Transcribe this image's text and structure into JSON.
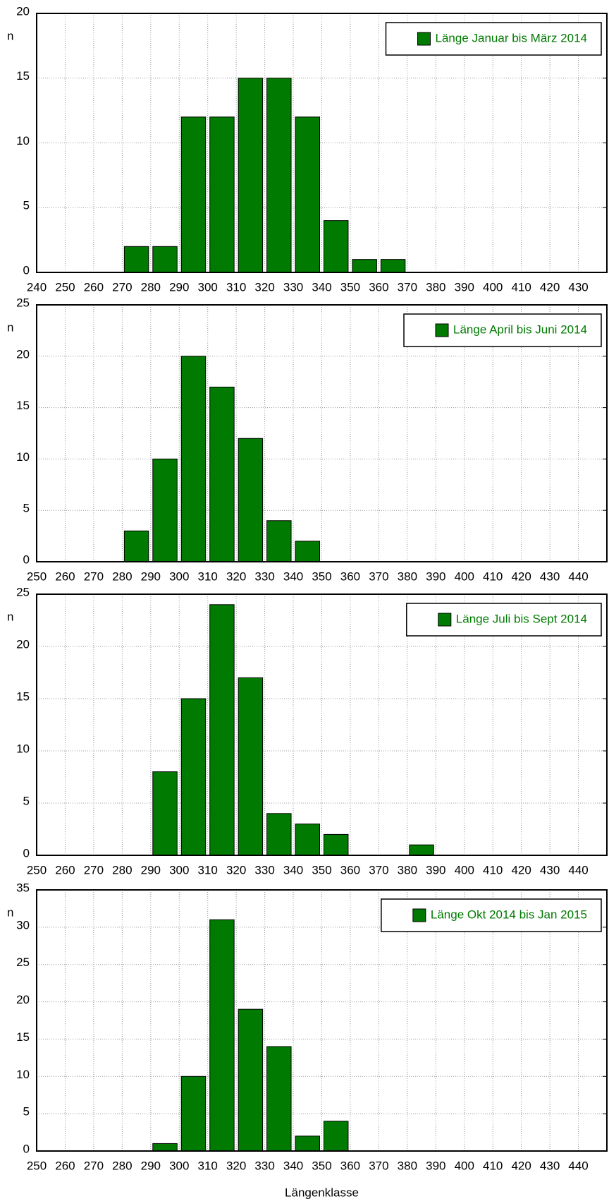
{
  "chart_data": [
    {
      "type": "histogram",
      "ylabel": "n",
      "legend": "upper right",
      "grid": true,
      "xlim": [
        240,
        440
      ],
      "xticks": [
        240,
        250,
        260,
        270,
        280,
        290,
        300,
        310,
        320,
        330,
        340,
        350,
        360,
        370,
        380,
        390,
        400,
        410,
        420,
        430
      ],
      "ylim": [
        0,
        20
      ],
      "yticks": [
        0,
        5,
        10,
        15,
        20
      ],
      "series": [
        {
          "name": "Länge Januar bis März 2014",
          "color": "#007a00",
          "bins": [
            270,
            280,
            290,
            300,
            310,
            320,
            330,
            340,
            350,
            360,
            370
          ],
          "counts": [
            2,
            2,
            12,
            12,
            15,
            15,
            12,
            4,
            1,
            1
          ]
        }
      ]
    },
    {
      "type": "histogram",
      "ylabel": "n",
      "legend": "upper right",
      "grid": true,
      "xlim": [
        250,
        450
      ],
      "xticks": [
        250,
        260,
        270,
        280,
        290,
        300,
        310,
        320,
        330,
        340,
        350,
        360,
        370,
        380,
        390,
        400,
        410,
        420,
        430,
        440
      ],
      "ylim": [
        0,
        25
      ],
      "yticks": [
        0,
        5,
        10,
        15,
        20,
        25
      ],
      "series": [
        {
          "name": "Länge April bis Juni 2014",
          "color": "#007a00",
          "bins": [
            280,
            290,
            300,
            310,
            320,
            330,
            340,
            350
          ],
          "counts": [
            3,
            10,
            20,
            17,
            12,
            4,
            2
          ]
        }
      ]
    },
    {
      "type": "histogram",
      "ylabel": "n",
      "legend": "upper right",
      "grid": true,
      "xlim": [
        250,
        450
      ],
      "xticks": [
        250,
        260,
        270,
        280,
        290,
        300,
        310,
        320,
        330,
        340,
        350,
        360,
        370,
        380,
        390,
        400,
        410,
        420,
        430,
        440
      ],
      "ylim": [
        0,
        25
      ],
      "yticks": [
        0,
        5,
        10,
        15,
        20,
        25
      ],
      "series": [
        {
          "name": "Länge Juli bis Sept 2014",
          "color": "#007a00",
          "bins": [
            290,
            300,
            310,
            320,
            330,
            340,
            350,
            360,
            370,
            380,
            390
          ],
          "counts": [
            8,
            15,
            24,
            17,
            4,
            3,
            2,
            0,
            0,
            1
          ]
        }
      ]
    },
    {
      "type": "histogram",
      "ylabel": "n",
      "xlabel": "Längenklasse",
      "legend": "upper right",
      "grid": true,
      "xlim": [
        250,
        450
      ],
      "xticks": [
        250,
        260,
        270,
        280,
        290,
        300,
        310,
        320,
        330,
        340,
        350,
        360,
        370,
        380,
        390,
        400,
        410,
        420,
        430,
        440
      ],
      "ylim": [
        0,
        35
      ],
      "yticks": [
        0,
        5,
        10,
        15,
        20,
        25,
        30,
        35
      ],
      "series": [
        {
          "name": "Länge Okt 2014 bis Jan 2015",
          "color": "#007a00",
          "bins": [
            290,
            300,
            310,
            320,
            330,
            340,
            350,
            360
          ],
          "counts": [
            1,
            10,
            31,
            19,
            14,
            2,
            4
          ]
        }
      ]
    }
  ]
}
